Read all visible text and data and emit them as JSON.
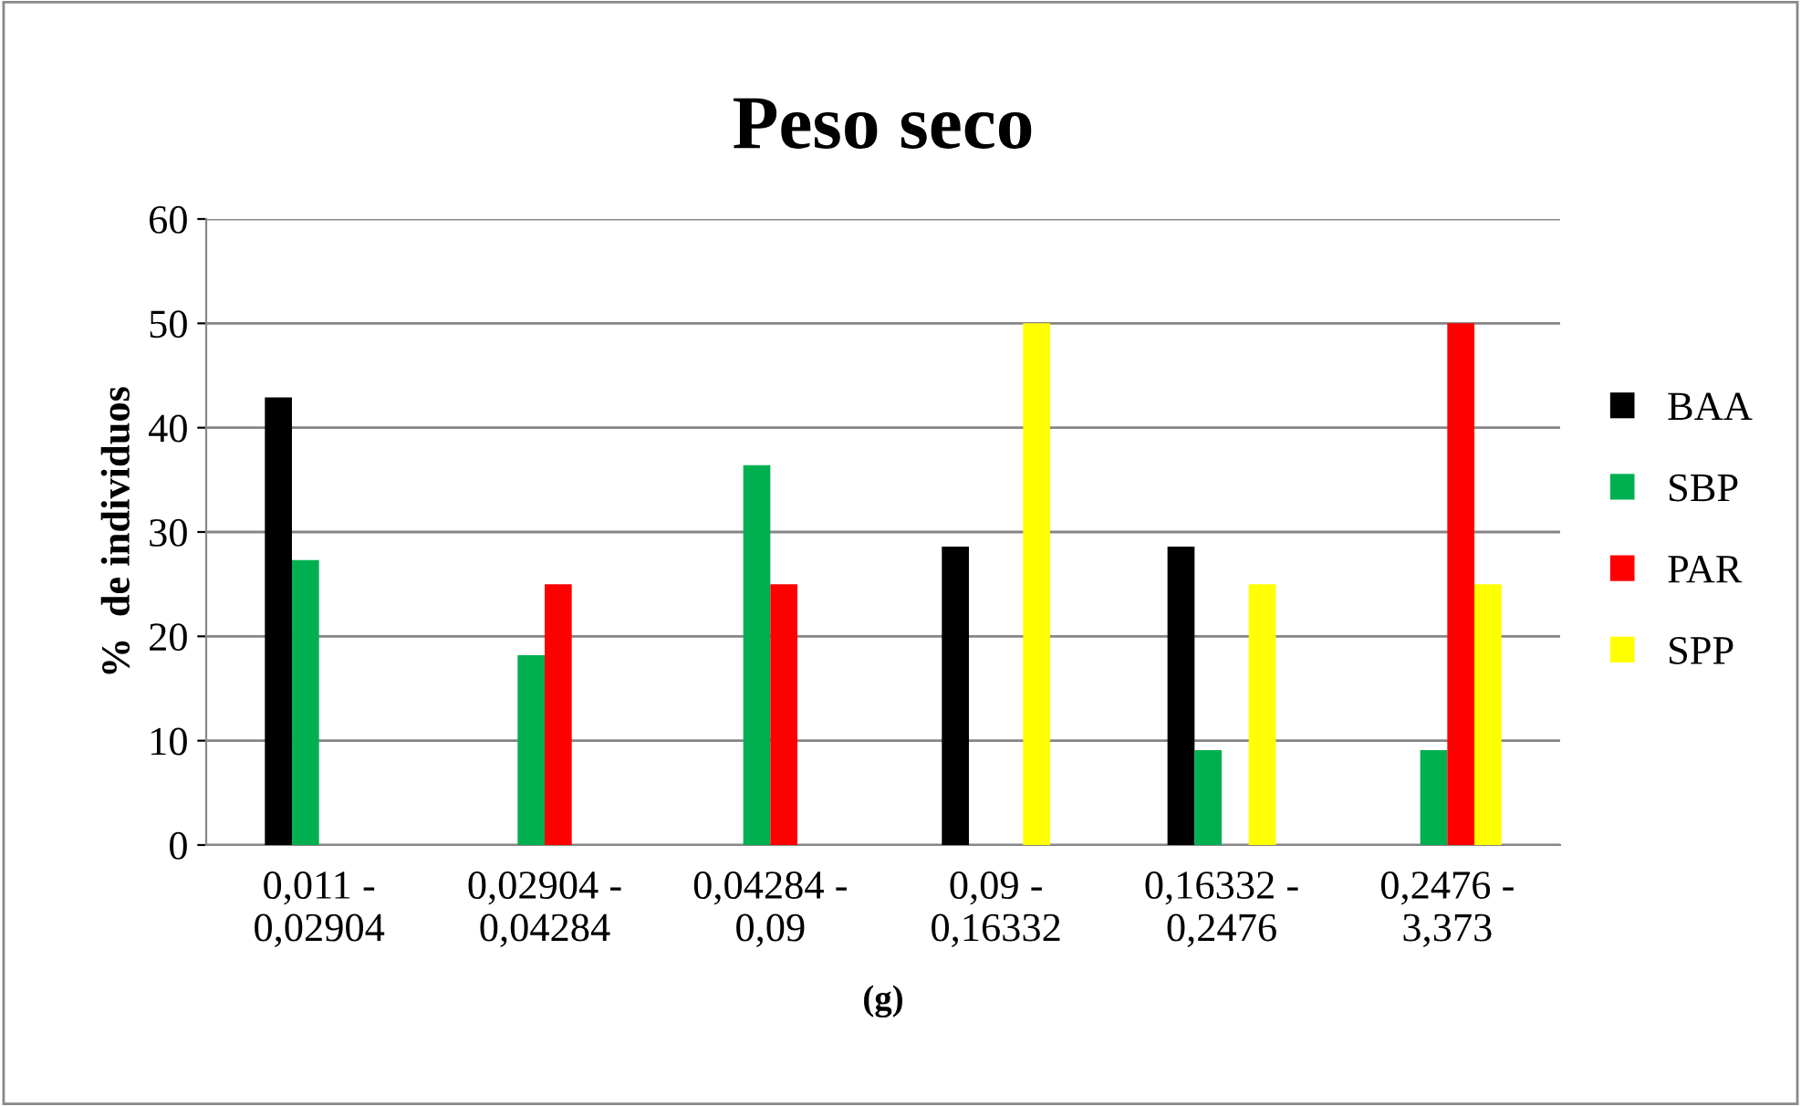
{
  "chart_data": {
    "type": "bar",
    "title": "Peso seco",
    "xlabel": "(g)",
    "ylabel": "%  de individuos",
    "categories": [
      "0,011 -\n0,02904",
      "0,02904 -\n0,04284",
      "0,04284 -\n0,09",
      "0,09 -\n0,16332",
      "0,16332 -\n0,2476",
      "0,2476 -\n3,373"
    ],
    "series": [
      {
        "name": "BAA",
        "color": "#000000",
        "values": [
          42.9,
          0,
          0,
          28.6,
          28.6,
          0
        ]
      },
      {
        "name": "SBP",
        "color": "#00b050",
        "values": [
          27.3,
          18.2,
          36.4,
          0,
          9.1,
          9.1
        ]
      },
      {
        "name": "PAR",
        "color": "#ff0000",
        "values": [
          0,
          25,
          25,
          0,
          0,
          50
        ]
      },
      {
        "name": "SPP",
        "color": "#ffff00",
        "values": [
          0,
          0,
          0,
          50,
          25,
          25
        ]
      }
    ],
    "ylim": [
      0,
      60
    ],
    "yticks": [
      0,
      10,
      20,
      30,
      40,
      50,
      60
    ],
    "grid": "y",
    "legend": "right"
  }
}
